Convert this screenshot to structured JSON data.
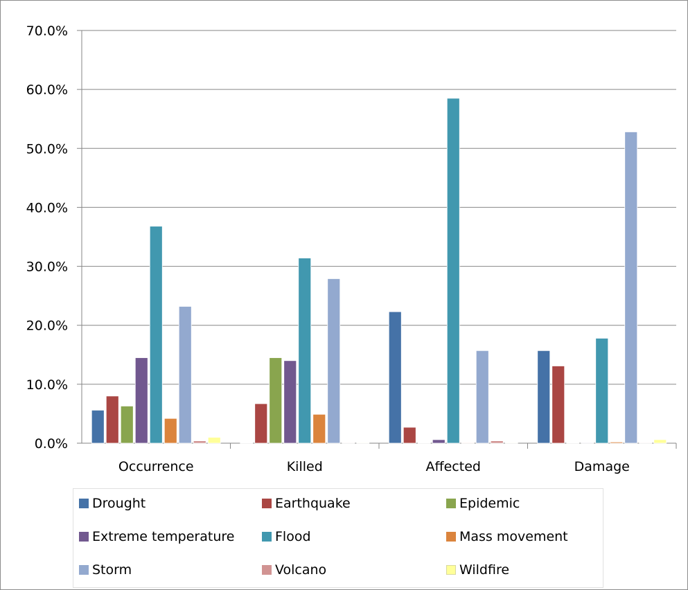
{
  "chart_data": {
    "type": "bar",
    "categories": [
      "Occurrence",
      "Killed",
      "Affected",
      "Damage"
    ],
    "ylim": [
      0,
      70
    ],
    "yticks": [
      "0.0%",
      "10.0%",
      "20.0%",
      "30.0%",
      "40.0%",
      "50.0%",
      "60.0%",
      "70.0%"
    ],
    "grid": true,
    "legend_position": "bottom",
    "series": [
      {
        "name": "Drought",
        "color": "#4572A7",
        "values": [
          5.6,
          0.0,
          22.3,
          15.7
        ]
      },
      {
        "name": "Earthquake",
        "color": "#AA4643",
        "values": [
          8.0,
          6.7,
          2.7,
          13.1
        ]
      },
      {
        "name": "Epidemic",
        "color": "#89A54E",
        "values": [
          6.3,
          14.5,
          0.0,
          0.0
        ]
      },
      {
        "name": "Extreme temperature",
        "color": "#71588F",
        "values": [
          14.5,
          14.0,
          0.6,
          0.1
        ]
      },
      {
        "name": "Flood",
        "color": "#4198AF",
        "values": [
          36.8,
          31.4,
          58.5,
          17.8
        ]
      },
      {
        "name": "Mass movement",
        "color": "#DB843D",
        "values": [
          4.2,
          4.9,
          0.1,
          0.2
        ]
      },
      {
        "name": "Storm",
        "color": "#93A9CF",
        "values": [
          23.2,
          27.9,
          15.7,
          52.8
        ]
      },
      {
        "name": "Volcano",
        "color": "#D19392",
        "values": [
          0.4,
          0.1,
          0.4,
          0.1
        ]
      },
      {
        "name": "Wildfire",
        "color": "#FFFF99",
        "values": [
          1.0,
          0.1,
          0.1,
          0.6
        ]
      }
    ]
  }
}
